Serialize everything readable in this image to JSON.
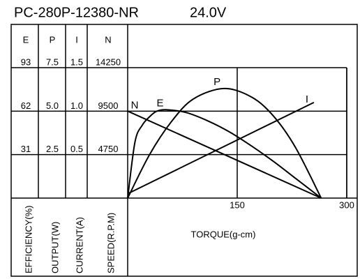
{
  "chart_data": {
    "type": "line",
    "title": "PC-280P-12380-NR",
    "voltage": "24.0V",
    "xlabel": "TORQUE(g-cm)",
    "xlim": [
      0,
      300
    ],
    "xticks": [
      150,
      300
    ],
    "axes": [
      {
        "header": "E",
        "label": "EFFICIENCY(%)",
        "lim": [
          0,
          93
        ],
        "ticks": [
          31,
          62,
          93
        ]
      },
      {
        "header": "P",
        "label": "OUTPUT(W)",
        "lim": [
          0,
          7.5
        ],
        "ticks": [
          {
            "value": 2.5,
            "label": "2.5"
          },
          {
            "value": 5,
            "label": "5.0"
          },
          {
            "value": 7.5,
            "label": "7.5"
          }
        ]
      },
      {
        "header": "I",
        "label": "CURRENT(A)",
        "lim": [
          0,
          1.5
        ],
        "ticks": [
          {
            "value": 0.5,
            "label": "0.5"
          },
          {
            "value": 1,
            "label": "1.0"
          },
          {
            "value": 1.5,
            "label": "1.5"
          }
        ]
      },
      {
        "header": "N",
        "label": "SPEED(R.P.M)",
        "lim": [
          0,
          14250
        ],
        "ticks": [
          4750,
          9500,
          14250
        ]
      }
    ],
    "series": [
      {
        "name": "N",
        "color": "#000000",
        "axis": 3,
        "x": [
          0,
          265
        ],
        "values": [
          9500,
          0
        ]
      },
      {
        "name": "E",
        "color": "#000000",
        "axis": 0,
        "x": [
          0,
          10,
          20,
          30,
          40,
          54,
          80,
          110,
          140,
          170,
          200,
          230,
          265
        ],
        "values": [
          0,
          40,
          52,
          58,
          62,
          63,
          61,
          55,
          47,
          37,
          26,
          14,
          0
        ]
      },
      {
        "name": "P",
        "color": "#000000",
        "axis": 1,
        "x": [
          0,
          30,
          60,
          90,
          132,
          170,
          200,
          230,
          265
        ],
        "values": [
          0,
          2.5,
          4.4,
          5.7,
          6.3,
          5.8,
          4.7,
          2.9,
          0
        ]
      },
      {
        "name": "I",
        "color": "#000000",
        "axis": 2,
        "x": [
          0,
          255
        ],
        "values": [
          0.05,
          1.1
        ]
      }
    ]
  }
}
